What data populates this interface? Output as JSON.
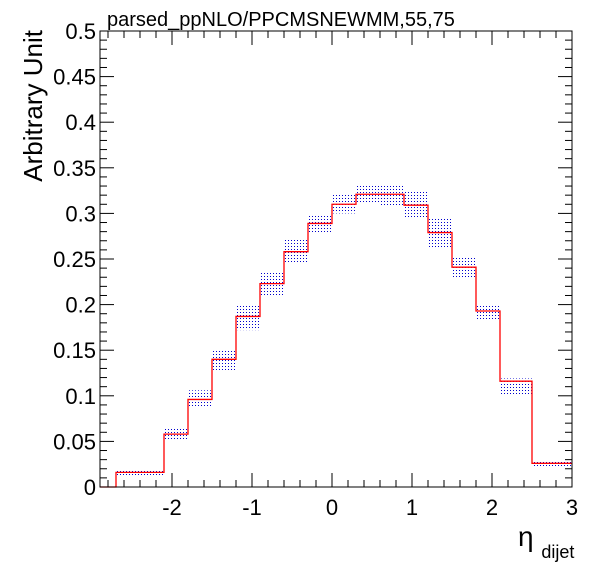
{
  "chart_data": {
    "type": "step",
    "title": "parsed_ppNLO/PPCMSNEWMM,55,75",
    "ylabel": "Arbitrary Unit",
    "xlabel_main": "η",
    "xlabel_sub": "dijet",
    "xlim": [
      -2.9,
      3.0
    ],
    "ylim": [
      0,
      0.5
    ],
    "x_ticks": [
      -2,
      -1,
      0,
      1,
      2,
      3
    ],
    "x_tick_labels": [
      "-2",
      "-1",
      "0",
      "1",
      "2",
      "3"
    ],
    "y_ticks": [
      0,
      0.05,
      0.1,
      0.15,
      0.2,
      0.25,
      0.3,
      0.35,
      0.4,
      0.45,
      0.5
    ],
    "y_tick_labels": [
      "0",
      "0.05",
      "0.1",
      "0.15",
      "0.2",
      "0.25",
      "0.3",
      "0.35",
      "0.4",
      "0.45",
      "0.5"
    ],
    "bin_edges": [
      -2.9,
      -2.7,
      -2.1,
      -1.8,
      -1.5,
      -1.2,
      -0.9,
      -0.6,
      -0.3,
      0.0,
      0.3,
      0.6,
      0.9,
      1.2,
      1.5,
      1.8,
      2.1,
      2.5,
      3.0
    ],
    "values": [
      0.0,
      0.016,
      0.058,
      0.096,
      0.14,
      0.187,
      0.223,
      0.258,
      0.289,
      0.31,
      0.321,
      0.321,
      0.309,
      0.279,
      0.241,
      0.193,
      0.116,
      0.026
    ],
    "band_low": [
      0.0,
      0.013,
      0.052,
      0.087,
      0.128,
      0.172,
      0.21,
      0.245,
      0.279,
      0.3,
      0.311,
      0.309,
      0.294,
      0.262,
      0.229,
      0.184,
      0.101,
      0.023
    ],
    "band_high": [
      0.0,
      0.018,
      0.064,
      0.106,
      0.151,
      0.199,
      0.236,
      0.271,
      0.299,
      0.321,
      0.331,
      0.331,
      0.324,
      0.295,
      0.253,
      0.199,
      0.119,
      0.028
    ],
    "line_color": "#ff0000",
    "band_color": "#0000cc",
    "grid": false
  }
}
